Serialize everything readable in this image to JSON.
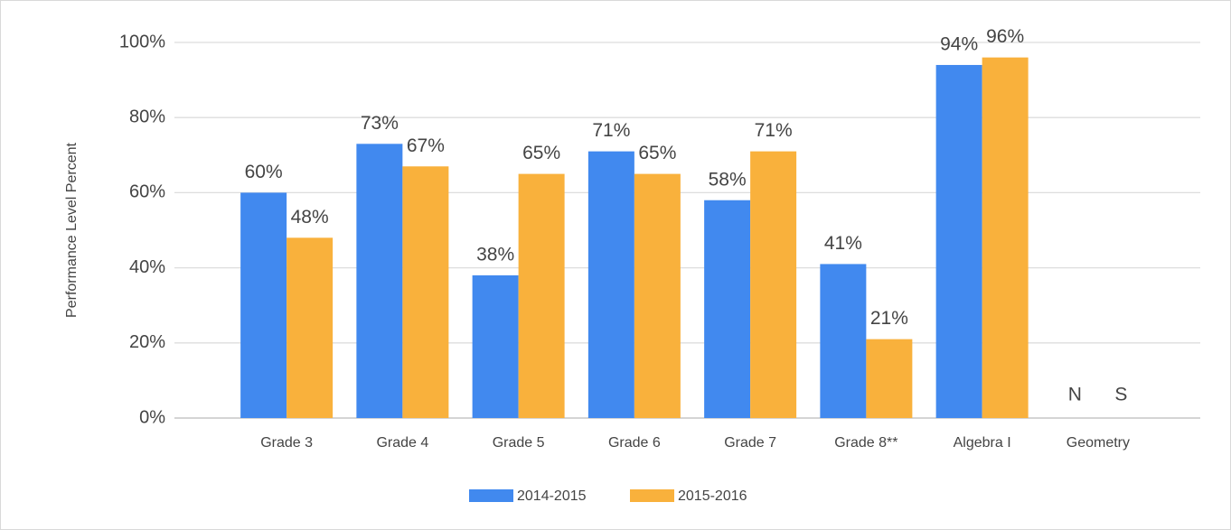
{
  "chart_data": {
    "type": "bar",
    "y_label": "Performance Level Percent",
    "categories": [
      "Grade 3",
      "Grade 4",
      "Grade 5",
      "Grade 6",
      "Grade 7",
      "Grade 8**",
      "Algebra I",
      "Geometry"
    ],
    "series": [
      {
        "name": "2014-2015",
        "color": "#4189ef",
        "values": [
          60,
          73,
          38,
          71,
          58,
          41,
          94,
          null
        ],
        "value_labels": [
          "60%",
          "73%",
          "38%",
          "71%",
          "58%",
          "41%",
          "94%",
          "N"
        ]
      },
      {
        "name": "2015-2016",
        "color": "#f9b13c",
        "values": [
          48,
          67,
          65,
          65,
          71,
          21,
          96,
          null
        ],
        "value_labels": [
          "48%",
          "67%",
          "65%",
          "65%",
          "71%",
          "21%",
          "96%",
          "S"
        ]
      }
    ],
    "ylim": [
      0,
      100
    ],
    "yticks": [
      {
        "value": 0,
        "label": "0%"
      },
      {
        "value": 20,
        "label": "20%"
      },
      {
        "value": 40,
        "label": "40%"
      },
      {
        "value": 60,
        "label": "60%"
      },
      {
        "value": 80,
        "label": "80%"
      },
      {
        "value": 100,
        "label": "100%"
      }
    ],
    "grid": true,
    "legend": "bottom"
  }
}
